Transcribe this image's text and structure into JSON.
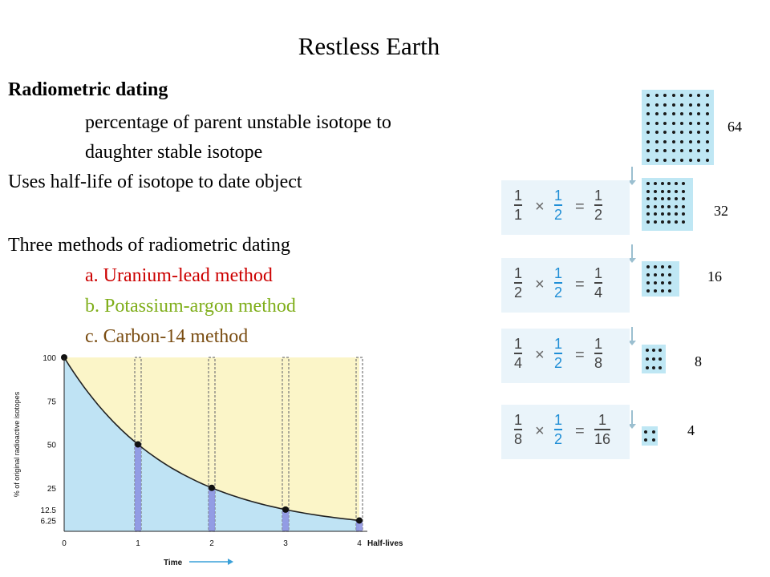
{
  "title": "Restless Earth",
  "lines": {
    "heading": "Radiometric dating",
    "l1": "percentage of parent unstable isotope to",
    "l2": "daughter stable isotope",
    "l3": "Uses half-life of isotope to date object",
    "l4": "Three methods of radiometric dating",
    "m1": "a. Uranium-lead method",
    "m2": "b. Potassium-argon method",
    "m3": "c. Carbon-14 method"
  },
  "colors": {
    "method_a": "#cc0000",
    "method_b": "#7fae1a",
    "method_c": "#7a4d12",
    "half_blue": "#1f8ed6"
  },
  "dot_counts": [
    "64",
    "32",
    "16",
    "8",
    "4"
  ],
  "fractions": [
    {
      "a_n": "1",
      "a_d": "1",
      "b_n": "1",
      "b_d": "2",
      "c_n": "1",
      "c_d": "2"
    },
    {
      "a_n": "1",
      "a_d": "2",
      "b_n": "1",
      "b_d": "2",
      "c_n": "1",
      "c_d": "4"
    },
    {
      "a_n": "1",
      "a_d": "4",
      "b_n": "1",
      "b_d": "2",
      "c_n": "1",
      "c_d": "8"
    },
    {
      "a_n": "1",
      "a_d": "8",
      "b_n": "1",
      "b_d": "2",
      "c_n": "1",
      "c_d": "16"
    }
  ],
  "symbols": {
    "times": "×",
    "equals": "="
  },
  "chart_data": {
    "type": "line",
    "x": [
      0,
      1,
      2,
      3,
      4
    ],
    "y": [
      100,
      50,
      25,
      12.5,
      6.25
    ],
    "xticks": [
      "0",
      "1",
      "2",
      "3",
      "4"
    ],
    "yticks": [
      "100",
      "75",
      "50",
      "25",
      "12.5",
      "6.25"
    ],
    "ylabel": "% of original radioactive isotopes",
    "xlabel": "Time",
    "xlabel_right": "Half-lives",
    "xlim": [
      0,
      4
    ],
    "ylim": [
      0,
      100
    ]
  }
}
